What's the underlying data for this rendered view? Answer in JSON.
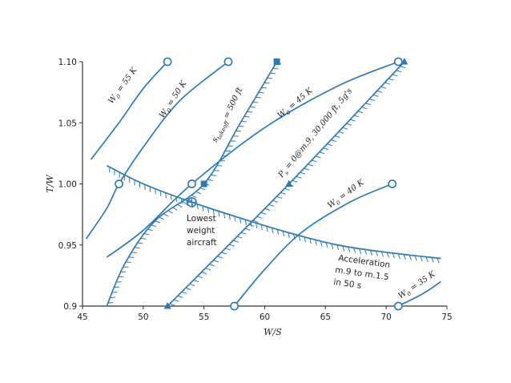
{
  "chart_data": {
    "type": "line",
    "xlabel": "W/S",
    "ylabel": "T/W",
    "xlim": [
      45,
      75
    ],
    "ylim": [
      0.9,
      1.1
    ],
    "x_ticks": [
      "45",
      "50",
      "55",
      "60",
      "65",
      "70",
      "75"
    ],
    "y_ticks": [
      "0.9",
      "0.95",
      "1.00",
      "1.05",
      "1.10"
    ],
    "color": "#2a7ab8",
    "series": [
      {
        "name": "W0 = 55 K",
        "points": [
          [
            45.7,
            1.02
          ],
          [
            48.0,
            1.05
          ],
          [
            50.0,
            1.078
          ],
          [
            52.0,
            1.1
          ]
        ],
        "markers": [
          [
            52.0,
            1.1
          ]
        ],
        "marker": "circle",
        "label_sub": "0",
        "label_parts": [
          "W",
          " = 55 K"
        ]
      },
      {
        "name": "W0 = 50 K",
        "points": [
          [
            45.3,
            0.955
          ],
          [
            47.0,
            0.98
          ],
          [
            48.0,
            1.0
          ],
          [
            50.0,
            1.03
          ],
          [
            53.0,
            1.068
          ],
          [
            57.0,
            1.1
          ]
        ],
        "markers": [
          [
            48.0,
            1.0
          ],
          [
            57.0,
            1.1
          ]
        ],
        "marker": "circle",
        "label_sub": "0",
        "label_parts": [
          "W",
          " = 50 K"
        ]
      },
      {
        "name": "W0 = 45 K",
        "points": [
          [
            47.0,
            0.94
          ],
          [
            50.0,
            0.962
          ],
          [
            54.0,
            1.0
          ],
          [
            60.0,
            1.046
          ],
          [
            66.0,
            1.08
          ],
          [
            71.0,
            1.1
          ]
        ],
        "markers": [
          [
            54.0,
            1.0
          ],
          [
            71.0,
            1.1
          ]
        ],
        "marker": "circle",
        "label_sub": "0",
        "label_parts": [
          "W",
          " = 45 K"
        ]
      },
      {
        "name": "W0 = 40 K",
        "points": [
          [
            57.5,
            0.9
          ],
          [
            60.0,
            0.93
          ],
          [
            63.0,
            0.96
          ],
          [
            67.0,
            0.985
          ],
          [
            70.5,
            1.0
          ]
        ],
        "markers": [
          [
            57.5,
            0.9
          ],
          [
            70.5,
            1.0
          ]
        ],
        "marker": "circle",
        "label_sub": "0",
        "label_parts": [
          "W",
          " = 40 K"
        ]
      },
      {
        "name": "W0 = 35 K",
        "points": [
          [
            71.0,
            0.9
          ],
          [
            73.0,
            0.91
          ],
          [
            74.5,
            0.92
          ]
        ],
        "markers": [
          [
            71.0,
            0.9
          ]
        ],
        "marker": "circle",
        "label_sub": "0",
        "label_parts": [
          "W",
          " = 35 K"
        ]
      },
      {
        "name": "s takeoff = 500 ft",
        "points": [
          [
            47.0,
            0.9
          ],
          [
            48.5,
            0.935
          ],
          [
            51.0,
            0.97
          ],
          [
            55.0,
            1.0
          ],
          [
            58.0,
            1.05
          ],
          [
            61.0,
            1.1
          ]
        ],
        "markers": [
          [
            55.0,
            1.0
          ],
          [
            61.0,
            1.1
          ]
        ],
        "marker": "square",
        "hatched": true,
        "label_sub": "takeoff",
        "label_parts": [
          "s",
          " = 500 ft"
        ]
      },
      {
        "name": "Ps = 0@m.9, 30,000 ft, 5g's",
        "points": [
          [
            52.0,
            0.9
          ],
          [
            62.0,
            1.0
          ],
          [
            71.5,
            1.1
          ]
        ],
        "markers": [
          [
            52.0,
            0.9
          ],
          [
            62.0,
            1.0
          ],
          [
            71.5,
            1.1
          ]
        ],
        "marker": "triangle",
        "hatched": true,
        "label_sub": "s",
        "label_parts": [
          "P",
          " = 0@m.9, 30,000 ft, 5g's"
        ]
      },
      {
        "name": "Acceleration m.9 to m.1.5 in 50 s",
        "points": [
          [
            47.0,
            1.015
          ],
          [
            50.0,
            1.0
          ],
          [
            54.0,
            0.985
          ],
          [
            58.0,
            0.972
          ],
          [
            62.0,
            0.96
          ],
          [
            66.0,
            0.95
          ],
          [
            70.0,
            0.944
          ],
          [
            74.5,
            0.939
          ]
        ],
        "markers": [],
        "hatched": true
      }
    ],
    "annotations": [
      {
        "text": "Lowest",
        "x": 54.0,
        "y": 0.985
      },
      {
        "text": "weight",
        "x": 54.0,
        "y": 0.985
      },
      {
        "text": "aircraft",
        "x": 54.0,
        "y": 0.985
      }
    ],
    "notes": {
      "acceleration": [
        "Acceleration",
        "m.9 to m.1.5",
        "in 50 s"
      ],
      "lowest": [
        "Lowest",
        "weight",
        "aircraft"
      ]
    }
  }
}
